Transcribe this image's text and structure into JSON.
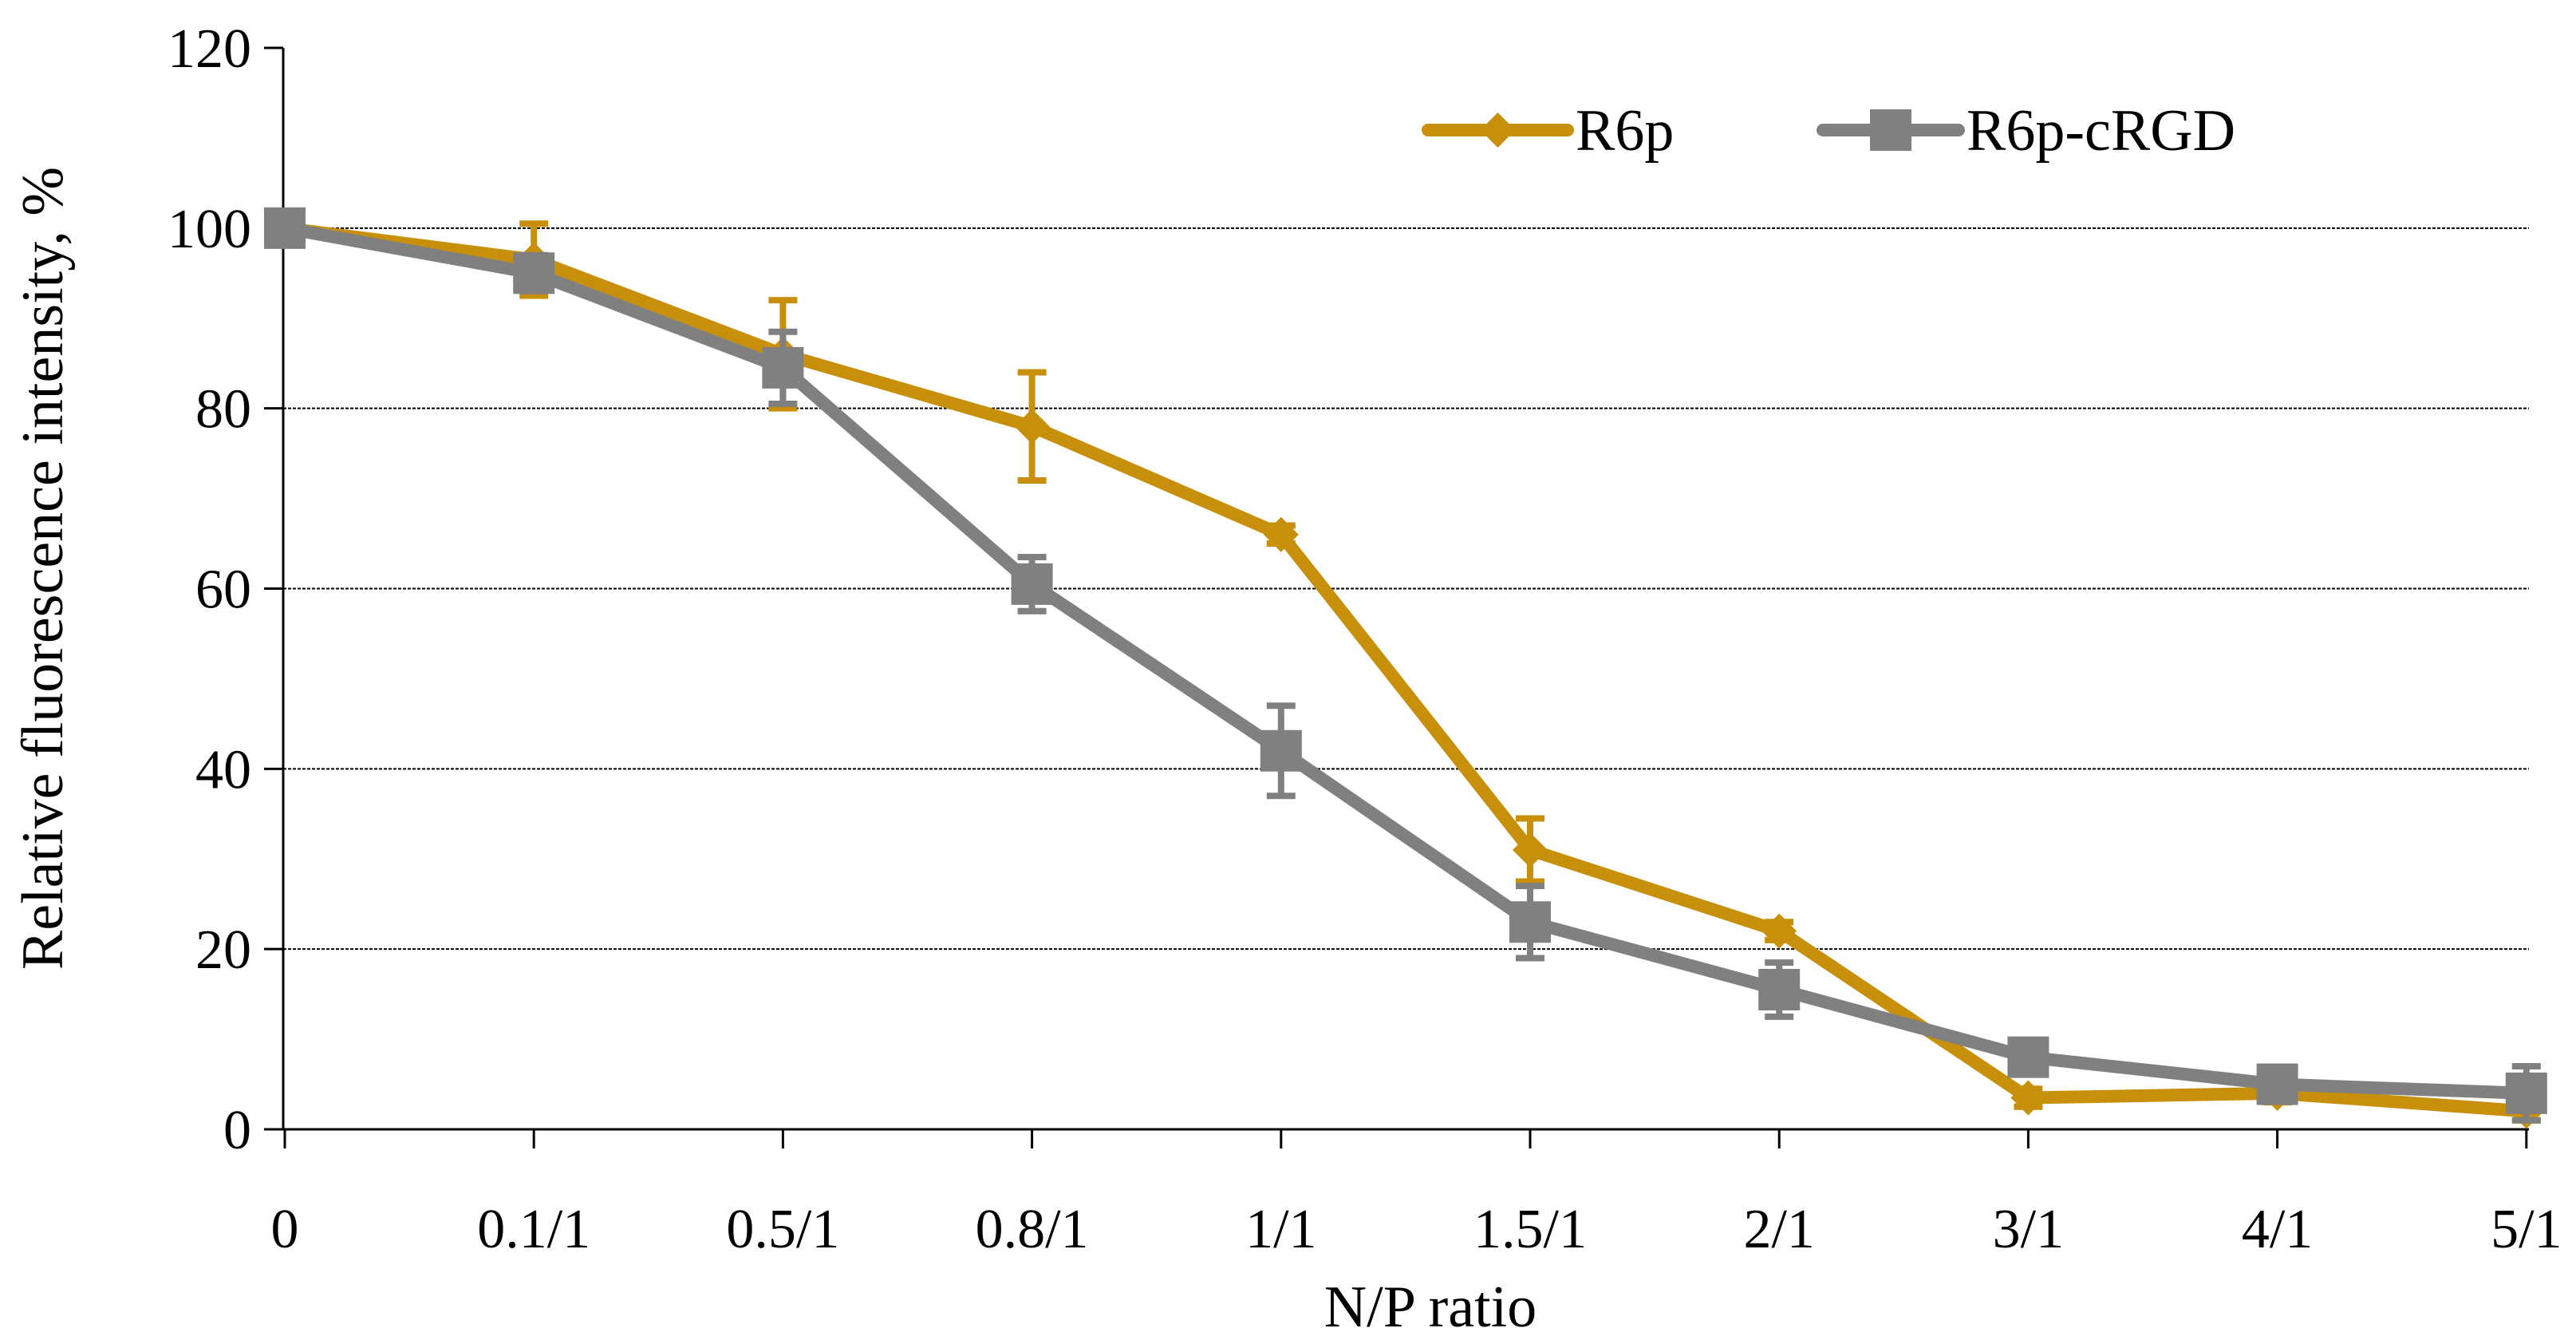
{
  "chart_data": {
    "type": "line",
    "title": "",
    "xlabel": "N/P ratio",
    "ylabel": "Relative fluorescence intensity, %",
    "categories": [
      "0",
      "0.1/1",
      "0.5/1",
      "0.8/1",
      "1/1",
      "1.5/1",
      "2/1",
      "3/1",
      "4/1",
      "5/1"
    ],
    "ylim": [
      0,
      120
    ],
    "yticks": [
      0,
      20,
      40,
      60,
      80,
      100,
      120
    ],
    "ytick_labels": [
      "0",
      "20",
      "40",
      "60",
      "80",
      "100",
      "120"
    ],
    "grid": "horizontal",
    "legend_position": "top-right",
    "series": [
      {
        "name": "R6p",
        "marker": "diamond",
        "color": "#C8900A",
        "values": [
          100,
          96.5,
          86,
          78,
          66,
          31,
          22,
          3.5,
          4,
          2
        ],
        "errors": [
          0,
          4,
          6,
          6,
          1,
          3.5,
          1,
          1,
          1,
          1
        ]
      },
      {
        "name": "R6p-cRGD",
        "marker": "square",
        "color": "#808080",
        "values": [
          100,
          95,
          84.5,
          60.5,
          42,
          23,
          15.5,
          8,
          5,
          4
        ],
        "errors": [
          0,
          2,
          4,
          3,
          5,
          4,
          3,
          1,
          1,
          3
        ]
      }
    ]
  }
}
